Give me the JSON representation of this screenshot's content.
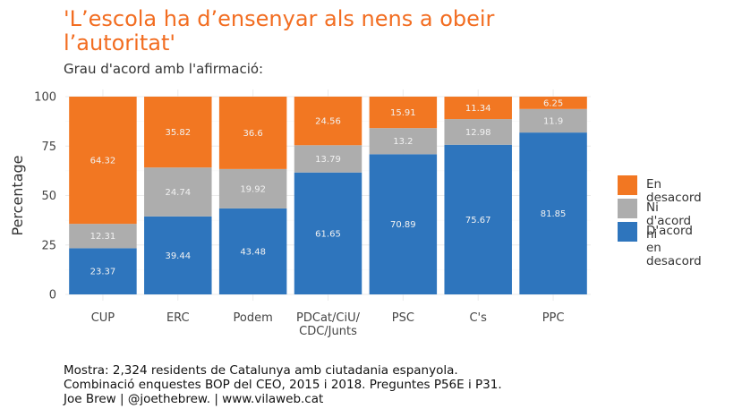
{
  "title": "'L’escola ha d’ensenyar als nens a obeir l’autoritat'",
  "subtitle": "Grau d'acord amb l'afirmació:",
  "caption": [
    "Mostra: 2,324 residents de Catalunya amb ciutadania espanyola.",
    "Combinació enquestes BOP del CEO, 2015 i 2018. Preguntes P56E i P31.",
    "Joe Brew | @joethebrew. | www.vilaweb.cat"
  ],
  "colors": {
    "D'acord": "#2e75bd",
    "Ni d'acord ni en desacord": "#adadad",
    "En desacord": "#f27722"
  },
  "legend": [
    {
      "key": "En desacord",
      "label": "En desacord"
    },
    {
      "key": "Ni d'acord ni en desacord",
      "label": "Ni d'acord ni\nen desacord"
    },
    {
      "key": "D'acord",
      "label": "D'acord"
    }
  ],
  "chart_data": {
    "type": "bar",
    "stacked": true,
    "categories": [
      "CUP",
      "ERC",
      "Podem",
      "PDCat/CiU/\nCDC/Junts",
      "PSC",
      "C's",
      "PPC"
    ],
    "series": [
      {
        "name": "D'acord",
        "values": [
          23.37,
          39.44,
          43.48,
          61.65,
          70.89,
          75.67,
          81.85
        ]
      },
      {
        "name": "Ni d'acord ni en desacord",
        "values": [
          12.31,
          24.74,
          19.92,
          13.79,
          13.2,
          12.98,
          11.9
        ]
      },
      {
        "name": "En desacord",
        "values": [
          64.32,
          35.82,
          36.6,
          24.56,
          15.91,
          11.34,
          6.25
        ]
      }
    ],
    "ylabel": "Percentage",
    "xlabel": "",
    "ylim": [
      0,
      100
    ],
    "yticks": [
      0,
      25,
      50,
      75,
      100
    ],
    "grid": true,
    "legend_position": "right"
  }
}
